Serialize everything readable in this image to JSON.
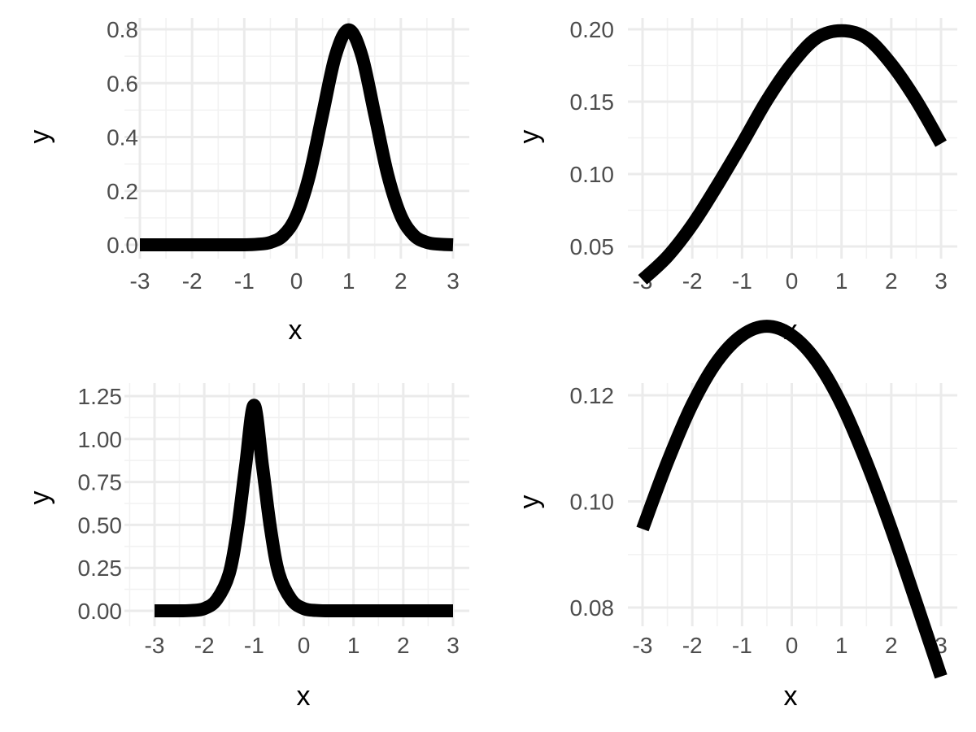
{
  "chart_data": [
    {
      "type": "line",
      "panel": "top-left",
      "title": "",
      "xlabel": "x",
      "ylabel": "y",
      "xlim": [
        -3,
        3
      ],
      "ylim": [
        0,
        0.8
      ],
      "xticks": [
        -3,
        -2,
        -1,
        0,
        1,
        2,
        3
      ],
      "xtick_labels": [
        "-3",
        "-2",
        "-1",
        "0",
        "1",
        "2",
        "3"
      ],
      "yticks": [
        0,
        0.2,
        0.4,
        0.6,
        0.8
      ],
      "ytick_labels": [
        "0.0",
        "0.2",
        "0.4",
        "0.6",
        "0.8"
      ],
      "grid": true,
      "series": [
        {
          "x": [
            -3,
            -2.5,
            -2,
            -1.5,
            -1,
            -0.75,
            -0.5,
            -0.25,
            0,
            0.25,
            0.5,
            0.75,
            1,
            1.25,
            1.5,
            1.75,
            2,
            2.25,
            2.5,
            2.75,
            3
          ],
          "y": [
            0.0,
            0.0,
            0.0,
            0.0,
            0.0,
            0.002,
            0.009,
            0.035,
            0.108,
            0.259,
            0.484,
            0.704,
            0.798,
            0.704,
            0.484,
            0.259,
            0.108,
            0.035,
            0.009,
            0.002,
            0.0
          ]
        }
      ]
    },
    {
      "type": "line",
      "panel": "top-right",
      "title": "",
      "xlabel": "x",
      "ylabel": "y",
      "xlim": [
        -3,
        3
      ],
      "ylim": [
        0.025,
        0.2
      ],
      "xticks": [
        -3,
        -2,
        -1,
        0,
        1,
        2,
        3
      ],
      "xtick_labels": [
        "-3",
        "-2",
        "-1",
        "0",
        "1",
        "2",
        "3"
      ],
      "yticks": [
        0.05,
        0.1,
        0.15,
        0.2
      ],
      "ytick_labels": [
        "0.05",
        "0.10",
        "0.15",
        "0.20"
      ],
      "grid": true,
      "series": [
        {
          "x": [
            -3,
            -2.5,
            -2,
            -1.5,
            -1,
            -0.5,
            0,
            0.5,
            1,
            1.5,
            2,
            2.5,
            3
          ],
          "y": [
            0.027,
            0.043,
            0.065,
            0.092,
            0.121,
            0.151,
            0.176,
            0.194,
            0.199,
            0.194,
            0.176,
            0.151,
            0.121
          ]
        }
      ]
    },
    {
      "type": "line",
      "panel": "bottom-left",
      "title": "",
      "xlabel": "x",
      "ylabel": "y",
      "xlim": [
        -3,
        3
      ],
      "ylim": [
        0,
        1.2
      ],
      "xticks": [
        -3,
        -2,
        -1,
        0,
        1,
        2,
        3
      ],
      "xtick_labels": [
        "-3",
        "-2",
        "-1",
        "0",
        "1",
        "2",
        "3"
      ],
      "yticks": [
        0,
        0.25,
        0.5,
        0.75,
        1.0,
        1.25
      ],
      "ytick_labels": [
        "0.00",
        "0.25",
        "0.50",
        "0.75",
        "1.00",
        "1.25"
      ],
      "grid": true,
      "series": [
        {
          "x": [
            -3,
            -2.5,
            -2.25,
            -2,
            -1.75,
            -1.5,
            -1.33,
            -1.17,
            -1,
            -0.83,
            -0.67,
            -0.5,
            -0.25,
            0,
            0.25,
            0.5,
            1,
            1.5,
            2,
            2.5,
            3
          ],
          "y": [
            0.0,
            0.0,
            0.002,
            0.013,
            0.065,
            0.216,
            0.483,
            0.843,
            1.197,
            0.843,
            0.483,
            0.216,
            0.065,
            0.013,
            0.002,
            0.0,
            0.0,
            0.0,
            0.0,
            0.0,
            0.0
          ]
        }
      ]
    },
    {
      "type": "line",
      "panel": "bottom-right",
      "title": "",
      "xlabel": "x",
      "ylabel": "y",
      "xlim": [
        -3,
        3
      ],
      "ylim": [
        0.068,
        0.133
      ],
      "xticks": [
        -3,
        -2,
        -1,
        0,
        1,
        2,
        3
      ],
      "xtick_labels": [
        "-3",
        "-2",
        "-1",
        "0",
        "1",
        "2",
        "3"
      ],
      "yticks": [
        0.08,
        0.1,
        0.12
      ],
      "ytick_labels": [
        "0.08",
        "0.10",
        "0.12"
      ],
      "grid": true,
      "series": [
        {
          "x": [
            -3,
            -2.5,
            -2,
            -1.5,
            -1,
            -0.5,
            0,
            0.5,
            1,
            1.5,
            2,
            2.5,
            3
          ],
          "y": [
            0.0948,
            0.1074,
            0.1183,
            0.1264,
            0.1313,
            0.133,
            0.1313,
            0.1264,
            0.1183,
            0.1074,
            0.0948,
            0.081,
            0.067
          ]
        }
      ]
    }
  ]
}
